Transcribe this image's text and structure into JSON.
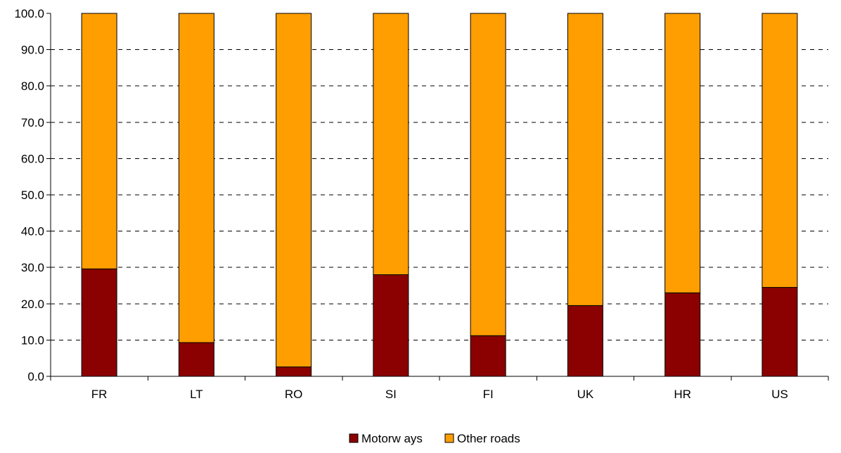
{
  "chart_data": {
    "type": "bar",
    "stacked": true,
    "title": "",
    "xlabel": "",
    "ylabel": "",
    "categories": [
      "FR",
      "LT",
      "RO",
      "SI",
      "FI",
      "UK",
      "HR",
      "US"
    ],
    "series": [
      {
        "name": "Motorw ays",
        "color": "#8b0000",
        "values": [
          29.6,
          9.3,
          2.6,
          28.0,
          11.2,
          19.5,
          23.0,
          24.5
        ]
      },
      {
        "name": "Other roads",
        "color": "#ff9e00",
        "values": [
          70.4,
          90.7,
          97.4,
          72.0,
          88.8,
          80.5,
          77.0,
          75.5
        ]
      }
    ],
    "ylim": [
      0,
      100
    ],
    "yticks": [
      "0.0",
      "10.0",
      "20.0",
      "30.0",
      "40.0",
      "50.0",
      "60.0",
      "70.0",
      "80.0",
      "90.0",
      "100.0"
    ],
    "grid": "dashed horizontal",
    "legend_position": "bottom"
  }
}
